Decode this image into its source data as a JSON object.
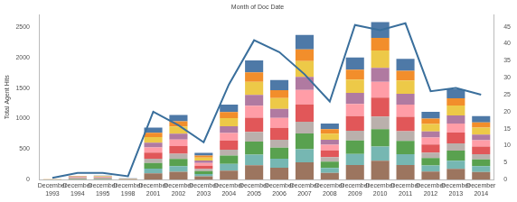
{
  "chart_data": {
    "type": "bar",
    "title": "Month of Doc Date",
    "y_label": "Total Agent Hits",
    "stacked": true,
    "grid": false,
    "categories": [
      "December 1993",
      "December 1994",
      "December 1995",
      "December 1998",
      "December 2001",
      "December 2002",
      "December 2003",
      "December 2004",
      "December 2005",
      "December 2006",
      "December 2007",
      "December 2008",
      "December 2009",
      "December 2010",
      "December 2011",
      "December 2012",
      "December 2013",
      "December 2014"
    ],
    "ylim": [
      0,
      2700
    ],
    "yticks": [
      0,
      500,
      1000,
      1500,
      2000,
      2500
    ],
    "y2lim": [
      0,
      48.5
    ],
    "y2ticks": [
      0,
      5,
      10,
      15,
      20,
      25,
      30,
      35,
      40,
      45
    ],
    "series": [
      {
        "color": "#9c755f",
        "values": [
          1,
          7,
          8,
          2,
          102,
          127,
          53,
          148,
          234,
          196,
          284,
          110,
          240,
          310,
          238,
          133,
          178,
          125
        ]
      },
      {
        "color": "#76b7b2",
        "values": [
          0,
          5,
          6,
          2,
          77,
          95,
          40,
          111,
          176,
          147,
          213,
          83,
          180,
          232,
          178,
          100,
          133,
          94
        ]
      },
      {
        "color": "#59a14f",
        "values": [
          1,
          7,
          7,
          2,
          94,
          117,
          48,
          135,
          215,
          179,
          261,
          101,
          220,
          284,
          218,
          122,
          163,
          114
        ]
      },
      {
        "color": "#bab0ac",
        "values": [
          0,
          5,
          5,
          2,
          68,
          85,
          35,
          98,
          156,
          130,
          190,
          74,
          160,
          206,
          158,
          89,
          118,
          83
        ]
      },
      {
        "color": "#e15759",
        "values": [
          1,
          7,
          8,
          3,
          102,
          127,
          53,
          148,
          234,
          196,
          284,
          110,
          240,
          310,
          238,
          133,
          178,
          125
        ]
      },
      {
        "color": "#ff9da7",
        "values": [
          0,
          6,
          7,
          2,
          85,
          106,
          44,
          123,
          195,
          163,
          237,
          92,
          200,
          258,
          198,
          111,
          148,
          104
        ]
      },
      {
        "color": "#b07aa1",
        "values": [
          1,
          5,
          6,
          2,
          77,
          95,
          40,
          111,
          176,
          147,
          213,
          83,
          180,
          232,
          178,
          100,
          133,
          94
        ]
      },
      {
        "color": "#edc948",
        "values": [
          0,
          7,
          7,
          2,
          94,
          117,
          48,
          135,
          215,
          179,
          261,
          101,
          220,
          284,
          218,
          122,
          163,
          114
        ]
      },
      {
        "color": "#f28e2b",
        "values": [
          1,
          5,
          5,
          1,
          68,
          85,
          35,
          98,
          156,
          130,
          190,
          74,
          160,
          206,
          158,
          89,
          118,
          83
        ]
      },
      {
        "color": "#4e79a7",
        "values": [
          0,
          6,
          6,
          2,
          85,
          106,
          44,
          123,
          195,
          163,
          237,
          92,
          200,
          258,
          198,
          111,
          148,
          104
        ]
      },
      {
        "type": "line",
        "axis": "y2",
        "color": "#3a6f9c",
        "marker": "none",
        "values": [
          0.5,
          2,
          2,
          1,
          20,
          16,
          11,
          28,
          41,
          37.5,
          31,
          23,
          45.5,
          44,
          46,
          26,
          27,
          25
        ]
      }
    ]
  }
}
